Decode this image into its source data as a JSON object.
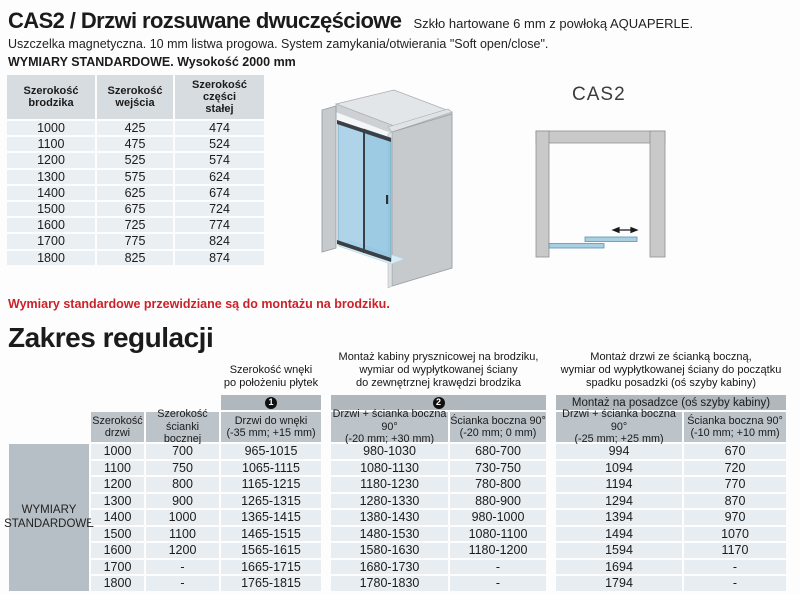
{
  "header": {
    "title": "CAS2 / Drzwi rozsuwane dwuczęściowe",
    "subtitle": "Szkło hartowane 6 mm z powłoką AQUAPERLE.",
    "line2": "Uszczelka magnetyczna. 10 mm listwa progowa. System zamykania/otwierania \"Soft open/close\".",
    "line3": "WYMIARY STANDARDOWE. Wysokość 2000 mm"
  },
  "standard_table": {
    "columns": [
      "Szerokość\nbrodzika",
      "Szerokość\nwejścia",
      "Szerokość\nczęści\nstałej"
    ],
    "rows": [
      [
        "1000",
        "425",
        "474"
      ],
      [
        "1100",
        "475",
        "524"
      ],
      [
        "1200",
        "525",
        "574"
      ],
      [
        "1300",
        "575",
        "624"
      ],
      [
        "1400",
        "625",
        "674"
      ],
      [
        "1500",
        "675",
        "724"
      ],
      [
        "1600",
        "725",
        "774"
      ],
      [
        "1700",
        "775",
        "824"
      ],
      [
        "1800",
        "825",
        "874"
      ]
    ]
  },
  "diagram": {
    "label": "CAS2"
  },
  "note": "Wymiary standardowe przewidziane są do montażu na brodziku.",
  "section2": {
    "title": "Zakres regulacji"
  },
  "adjustment_table": {
    "captions": [
      "Szerokość wnęki\npo położeniu płytek",
      "Montaż kabiny prysznicowej na brodziku,\nwymiar od wypłytkowanej ściany\ndo zewnętrznej krawędzi brodzika",
      "Montaż drzwi ze ścianką boczną,\nwymiar od wypłytkowanej ściany do początku\nspadku posadzki (oś szyby kabiny)"
    ],
    "badges": [
      "1",
      "2"
    ],
    "band3": "Montaż na posadzce (oś szyby kabiny)",
    "row_label": "WYMIARY\nSTANDARDOWE",
    "columns": [
      "Szerokość\ndrzwi",
      "Szerokość\nścianki bocznej",
      "Drzwi do wnęki\n(-35 mm; +15 mm)",
      "Drzwi + ścianka boczna 90°\n(-20 mm; +30 mm)",
      "Ścianka boczna 90°\n(-20 mm; 0 mm)",
      "Drzwi + ścianka boczna 90°\n(-25 mm; +25 mm)",
      "Ścianka boczna 90°\n(-10 mm; +10 mm)"
    ],
    "rows": [
      [
        "1000",
        "700",
        "965-1015",
        "980-1030",
        "680-700",
        "994",
        "670"
      ],
      [
        "1100",
        "750",
        "1065-1115",
        "1080-1130",
        "730-750",
        "1094",
        "720"
      ],
      [
        "1200",
        "800",
        "1165-1215",
        "1180-1230",
        "780-800",
        "1194",
        "770"
      ],
      [
        "1300",
        "900",
        "1265-1315",
        "1280-1330",
        "880-900",
        "1294",
        "870"
      ],
      [
        "1400",
        "1000",
        "1365-1415",
        "1380-1430",
        "980-1000",
        "1394",
        "970"
      ],
      [
        "1500",
        "1100",
        "1465-1515",
        "1480-1530",
        "1080-1100",
        "1494",
        "1070"
      ],
      [
        "1600",
        "1200",
        "1565-1615",
        "1580-1630",
        "1180-1200",
        "1594",
        "1170"
      ],
      [
        "1700",
        "-",
        "1665-1715",
        "1680-1730",
        "-",
        "1694",
        "-"
      ],
      [
        "1800",
        "-",
        "1765-1815",
        "1780-1830",
        "-",
        "1794",
        "-"
      ]
    ]
  },
  "colors": {
    "red": "#cc2128",
    "band": "#b0b7bd",
    "head": "#bcc3c9",
    "label": "#b7bfc6",
    "cell": "#e8edf1",
    "lt_head": "#d7dce1",
    "lt_cell": "#eaeff3",
    "wall_gray": "#c6cacd",
    "glass_blue": "#a9cfe2"
  }
}
